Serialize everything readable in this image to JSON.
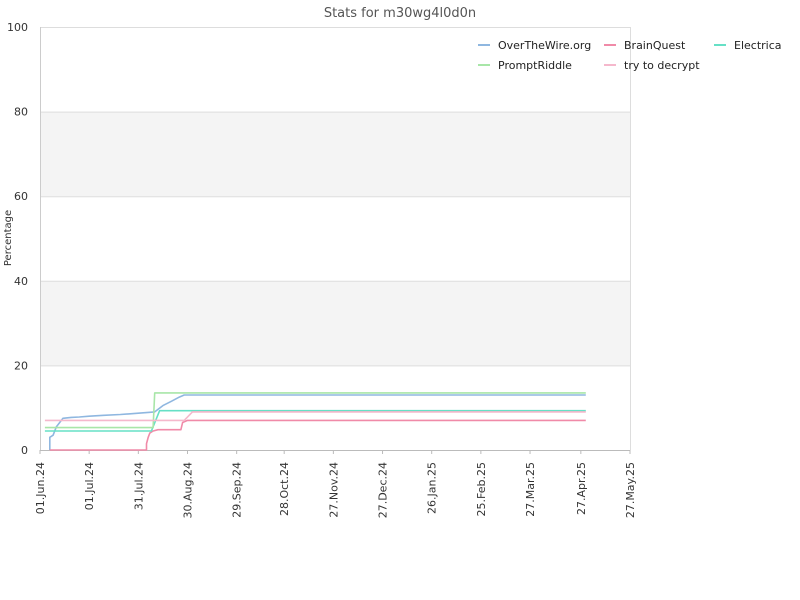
{
  "chart_data": {
    "type": "line",
    "title": "Stats for m30wg4l0d0n",
    "xlabel": "",
    "ylabel": "Percentage",
    "ylim": [
      0,
      100
    ],
    "y_ticks": [
      0,
      20,
      40,
      60,
      80,
      100
    ],
    "x_range": [
      "2024-06-01",
      "2025-05-27"
    ],
    "x_ticks": [
      {
        "date": "2024-06-01",
        "label": "01.Jun.24"
      },
      {
        "date": "2024-07-01",
        "label": "01.Jul.24"
      },
      {
        "date": "2024-07-31",
        "label": "31.Jul.24"
      },
      {
        "date": "2024-08-30",
        "label": "30.Aug.24"
      },
      {
        "date": "2024-09-29",
        "label": "29.Sep.24"
      },
      {
        "date": "2024-10-28",
        "label": "28.Oct.24"
      },
      {
        "date": "2024-11-27",
        "label": "27.Nov.24"
      },
      {
        "date": "2024-12-27",
        "label": "27.Dec.24"
      },
      {
        "date": "2025-01-26",
        "label": "26.Jan.25"
      },
      {
        "date": "2025-02-25",
        "label": "25.Feb.25"
      },
      {
        "date": "2025-03-27",
        "label": "27.Mar.25"
      },
      {
        "date": "2025-04-27",
        "label": "27.Apr.25"
      },
      {
        "date": "2025-05-27",
        "label": "27.May.25"
      }
    ],
    "grid": true,
    "legend_position": "top-right",
    "series": [
      {
        "name": "OverTheWire.org",
        "color": "#8fb7e0",
        "points": [
          [
            "2024-06-07",
            0
          ],
          [
            "2024-06-07",
            3
          ],
          [
            "2024-06-09",
            3.5
          ],
          [
            "2024-06-11",
            5.5
          ],
          [
            "2024-06-13",
            6.5
          ],
          [
            "2024-06-15",
            7.5
          ],
          [
            "2024-06-20",
            7.7
          ],
          [
            "2024-06-25",
            7.8
          ],
          [
            "2024-07-01",
            8.0
          ],
          [
            "2024-07-10",
            8.2
          ],
          [
            "2024-07-20",
            8.4
          ],
          [
            "2024-07-31",
            8.7
          ],
          [
            "2024-08-10",
            9.0
          ],
          [
            "2024-08-15",
            10.5
          ],
          [
            "2024-08-20",
            11.5
          ],
          [
            "2024-08-25",
            12.5
          ],
          [
            "2024-08-28",
            13.0
          ],
          [
            "2025-04-30",
            13.0
          ]
        ]
      },
      {
        "name": "BrainQuest",
        "color": "#f08aa8",
        "points": [
          [
            "2024-06-07",
            0
          ],
          [
            "2024-08-05",
            0
          ],
          [
            "2024-08-05",
            1.5
          ],
          [
            "2024-08-06",
            3
          ],
          [
            "2024-08-07",
            4
          ],
          [
            "2024-08-09",
            4.5
          ],
          [
            "2024-08-12",
            4.8
          ],
          [
            "2024-08-26",
            4.8
          ],
          [
            "2024-08-27",
            6.5
          ],
          [
            "2024-08-30",
            7.0
          ],
          [
            "2025-04-30",
            7.0
          ]
        ]
      },
      {
        "name": "Electrica",
        "color": "#66e0c6",
        "points": [
          [
            "2024-06-04",
            4.5
          ],
          [
            "2024-08-08",
            4.5
          ],
          [
            "2024-08-13",
            9.3
          ],
          [
            "2025-04-30",
            9.3
          ]
        ]
      },
      {
        "name": "PromptRiddle",
        "color": "#a8e6a8",
        "points": [
          [
            "2024-06-04",
            5.3
          ],
          [
            "2024-08-09",
            5.3
          ],
          [
            "2024-08-10",
            13.5
          ],
          [
            "2025-04-30",
            13.5
          ]
        ]
      },
      {
        "name": "try to decrypt",
        "color": "#f5b8cc",
        "points": [
          [
            "2024-06-04",
            7.0
          ],
          [
            "2024-08-28",
            7.0
          ],
          [
            "2024-09-02",
            9.0
          ],
          [
            "2025-04-30",
            9.0
          ]
        ]
      }
    ]
  }
}
